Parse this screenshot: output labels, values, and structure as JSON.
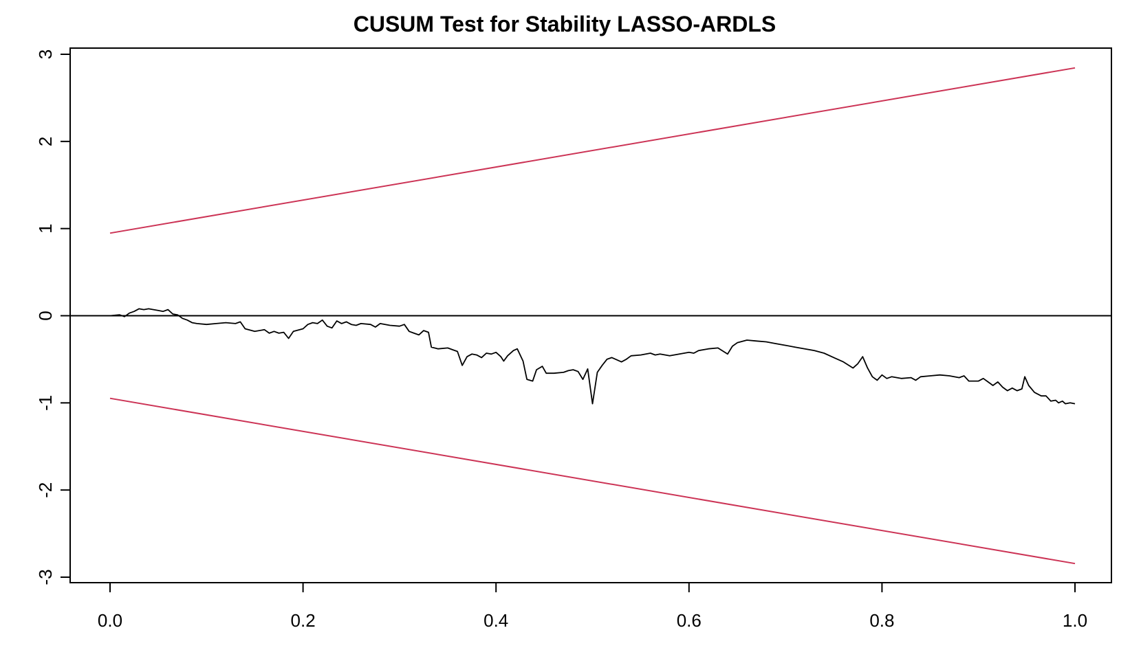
{
  "chart_data": {
    "type": "line",
    "title": "CUSUM Test for Stability LASSO-ARDLS",
    "xlabel": "",
    "ylabel": "",
    "xlim": [
      0.0,
      1.0
    ],
    "ylim": [
      -3,
      3
    ],
    "x_ticks": [
      {
        "value": 0.0,
        "label": "0.0"
      },
      {
        "value": 0.2,
        "label": "0.2"
      },
      {
        "value": 0.4,
        "label": "0.4"
      },
      {
        "value": 0.6,
        "label": "0.6"
      },
      {
        "value": 0.8,
        "label": "0.8"
      },
      {
        "value": 1.0,
        "label": "1.0"
      }
    ],
    "y_ticks": [
      {
        "value": 3,
        "label": "3"
      },
      {
        "value": 2,
        "label": "2"
      },
      {
        "value": 1,
        "label": "1"
      },
      {
        "value": 0,
        "label": "0"
      },
      {
        "value": -1,
        "label": "-1"
      },
      {
        "value": -2,
        "label": "-2"
      },
      {
        "value": -3,
        "label": "-3"
      }
    ],
    "reference_line": {
      "y": 0,
      "color": "#000000"
    },
    "series": [
      {
        "color": "#000000",
        "points": [
          [
            0.0,
            0.0
          ],
          [
            0.01,
            0.01
          ],
          [
            0.015,
            -0.01
          ],
          [
            0.02,
            0.03
          ],
          [
            0.025,
            0.05
          ],
          [
            0.03,
            0.08
          ],
          [
            0.035,
            0.07
          ],
          [
            0.04,
            0.08
          ],
          [
            0.045,
            0.07
          ],
          [
            0.05,
            0.06
          ],
          [
            0.055,
            0.05
          ],
          [
            0.06,
            0.07
          ],
          [
            0.065,
            0.02
          ],
          [
            0.07,
            0.01
          ],
          [
            0.075,
            -0.03
          ],
          [
            0.08,
            -0.05
          ],
          [
            0.085,
            -0.08
          ],
          [
            0.09,
            -0.09
          ],
          [
            0.1,
            -0.1
          ],
          [
            0.11,
            -0.09
          ],
          [
            0.12,
            -0.08
          ],
          [
            0.13,
            -0.09
          ],
          [
            0.135,
            -0.07
          ],
          [
            0.14,
            -0.15
          ],
          [
            0.15,
            -0.18
          ],
          [
            0.16,
            -0.16
          ],
          [
            0.165,
            -0.2
          ],
          [
            0.17,
            -0.18
          ],
          [
            0.175,
            -0.2
          ],
          [
            0.18,
            -0.19
          ],
          [
            0.185,
            -0.26
          ],
          [
            0.19,
            -0.18
          ],
          [
            0.2,
            -0.15
          ],
          [
            0.205,
            -0.1
          ],
          [
            0.21,
            -0.08
          ],
          [
            0.215,
            -0.09
          ],
          [
            0.22,
            -0.05
          ],
          [
            0.225,
            -0.12
          ],
          [
            0.23,
            -0.14
          ],
          [
            0.235,
            -0.06
          ],
          [
            0.24,
            -0.09
          ],
          [
            0.245,
            -0.07
          ],
          [
            0.25,
            -0.1
          ],
          [
            0.255,
            -0.11
          ],
          [
            0.26,
            -0.09
          ],
          [
            0.27,
            -0.1
          ],
          [
            0.275,
            -0.13
          ],
          [
            0.28,
            -0.09
          ],
          [
            0.29,
            -0.11
          ],
          [
            0.3,
            -0.12
          ],
          [
            0.305,
            -0.1
          ],
          [
            0.31,
            -0.18
          ],
          [
            0.315,
            -0.2
          ],
          [
            0.32,
            -0.22
          ],
          [
            0.325,
            -0.17
          ],
          [
            0.33,
            -0.19
          ],
          [
            0.333,
            -0.36
          ],
          [
            0.34,
            -0.38
          ],
          [
            0.35,
            -0.37
          ],
          [
            0.355,
            -0.39
          ],
          [
            0.36,
            -0.41
          ],
          [
            0.365,
            -0.57
          ],
          [
            0.37,
            -0.47
          ],
          [
            0.375,
            -0.44
          ],
          [
            0.38,
            -0.45
          ],
          [
            0.385,
            -0.48
          ],
          [
            0.39,
            -0.43
          ],
          [
            0.395,
            -0.44
          ],
          [
            0.4,
            -0.42
          ],
          [
            0.405,
            -0.47
          ],
          [
            0.408,
            -0.52
          ],
          [
            0.412,
            -0.46
          ],
          [
            0.418,
            -0.4
          ],
          [
            0.422,
            -0.38
          ],
          [
            0.428,
            -0.52
          ],
          [
            0.432,
            -0.73
          ],
          [
            0.438,
            -0.75
          ],
          [
            0.442,
            -0.62
          ],
          [
            0.448,
            -0.58
          ],
          [
            0.452,
            -0.66
          ],
          [
            0.46,
            -0.66
          ],
          [
            0.47,
            -0.65
          ],
          [
            0.475,
            -0.63
          ],
          [
            0.48,
            -0.62
          ],
          [
            0.485,
            -0.64
          ],
          [
            0.49,
            -0.73
          ],
          [
            0.495,
            -0.61
          ],
          [
            0.5,
            -1.01
          ],
          [
            0.505,
            -0.65
          ],
          [
            0.51,
            -0.57
          ],
          [
            0.515,
            -0.5
          ],
          [
            0.52,
            -0.48
          ],
          [
            0.53,
            -0.53
          ],
          [
            0.535,
            -0.5
          ],
          [
            0.54,
            -0.46
          ],
          [
            0.55,
            -0.45
          ],
          [
            0.56,
            -0.43
          ],
          [
            0.565,
            -0.45
          ],
          [
            0.57,
            -0.44
          ],
          [
            0.58,
            -0.46
          ],
          [
            0.59,
            -0.44
          ],
          [
            0.6,
            -0.42
          ],
          [
            0.605,
            -0.43
          ],
          [
            0.61,
            -0.4
          ],
          [
            0.62,
            -0.38
          ],
          [
            0.63,
            -0.37
          ],
          [
            0.64,
            -0.44
          ],
          [
            0.645,
            -0.35
          ],
          [
            0.65,
            -0.31
          ],
          [
            0.66,
            -0.28
          ],
          [
            0.67,
            -0.29
          ],
          [
            0.68,
            -0.3
          ],
          [
            0.69,
            -0.32
          ],
          [
            0.7,
            -0.34
          ],
          [
            0.71,
            -0.36
          ],
          [
            0.72,
            -0.38
          ],
          [
            0.73,
            -0.4
          ],
          [
            0.74,
            -0.43
          ],
          [
            0.75,
            -0.48
          ],
          [
            0.76,
            -0.53
          ],
          [
            0.77,
            -0.6
          ],
          [
            0.775,
            -0.55
          ],
          [
            0.78,
            -0.47
          ],
          [
            0.785,
            -0.6
          ],
          [
            0.79,
            -0.7
          ],
          [
            0.795,
            -0.74
          ],
          [
            0.8,
            -0.68
          ],
          [
            0.805,
            -0.72
          ],
          [
            0.81,
            -0.7
          ],
          [
            0.82,
            -0.72
          ],
          [
            0.83,
            -0.71
          ],
          [
            0.835,
            -0.74
          ],
          [
            0.84,
            -0.7
          ],
          [
            0.85,
            -0.69
          ],
          [
            0.86,
            -0.68
          ],
          [
            0.87,
            -0.69
          ],
          [
            0.88,
            -0.71
          ],
          [
            0.885,
            -0.69
          ],
          [
            0.89,
            -0.75
          ],
          [
            0.9,
            -0.75
          ],
          [
            0.905,
            -0.72
          ],
          [
            0.91,
            -0.76
          ],
          [
            0.915,
            -0.8
          ],
          [
            0.92,
            -0.76
          ],
          [
            0.925,
            -0.82
          ],
          [
            0.93,
            -0.86
          ],
          [
            0.935,
            -0.83
          ],
          [
            0.94,
            -0.86
          ],
          [
            0.945,
            -0.84
          ],
          [
            0.948,
            -0.7
          ],
          [
            0.952,
            -0.8
          ],
          [
            0.958,
            -0.88
          ],
          [
            0.965,
            -0.92
          ],
          [
            0.97,
            -0.92
          ],
          [
            0.975,
            -0.98
          ],
          [
            0.98,
            -0.97
          ],
          [
            0.983,
            -1.0
          ],
          [
            0.987,
            -0.98
          ],
          [
            0.99,
            -1.01
          ],
          [
            0.995,
            -1.0
          ],
          [
            1.0,
            -1.01
          ]
        ]
      },
      {
        "color": "#cc3355",
        "points": [
          [
            0.0,
            0.948
          ],
          [
            1.0,
            2.844
          ]
        ]
      },
      {
        "color": "#cc3355",
        "points": [
          [
            0.0,
            -0.948
          ],
          [
            1.0,
            -2.844
          ]
        ]
      }
    ]
  }
}
